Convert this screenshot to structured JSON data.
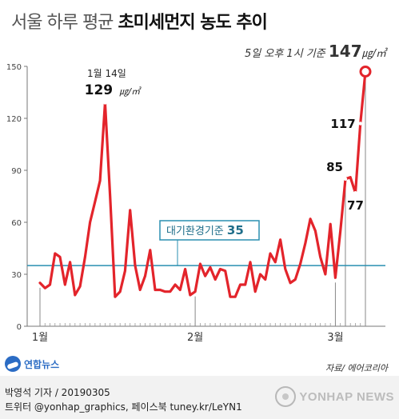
{
  "header": {
    "title_light": "서울 하루 평균",
    "title_bold": "초미세먼지 농도 추이",
    "note_small": "5일 오후 1시 기준",
    "note_value": "147",
    "note_unit": "㎍/㎥"
  },
  "chart_data": {
    "type": "line",
    "x_labels": [
      "1월",
      "2월",
      "3월"
    ],
    "y_ticks": [
      0,
      30,
      60,
      90,
      120,
      150
    ],
    "ylim": [
      0,
      150
    ],
    "series": [
      {
        "color": "#e3242b",
        "values": [
          25,
          22,
          24,
          42,
          40,
          24,
          37,
          18,
          23,
          40,
          60,
          72,
          84,
          129,
          75,
          17,
          20,
          32,
          67,
          35,
          21,
          29,
          44,
          21,
          21,
          20,
          20,
          24,
          21,
          33,
          18,
          20,
          36,
          29,
          34,
          27,
          33,
          32,
          17,
          17,
          24,
          24,
          37,
          20,
          30,
          27,
          42,
          37,
          50,
          33,
          25,
          27,
          36,
          48,
          62,
          55,
          40,
          30,
          59,
          28,
          55,
          85,
          86,
          77,
          117,
          147
        ]
      }
    ],
    "standard_line": {
      "value": 35,
      "label": "대기환경기준",
      "value_label": "35"
    },
    "annotations": [
      {
        "label_top": "1월 14일",
        "value": "129",
        "unit": "㎍/㎥",
        "index": 13
      },
      {
        "value": "85",
        "index": 61
      },
      {
        "value": "77",
        "index": 63
      },
      {
        "value": "117",
        "index": 64
      }
    ],
    "grid": false
  },
  "footer": {
    "logo_text": "연합뉴스",
    "source": "자료/ 에어코리아",
    "credit_line1": "박영석 기자 / 20190305",
    "credit_line2": "트위터 @yonhap_graphics, 페이스북 tuney.kr/LeYN1",
    "watermark": "YONHAP NEWS"
  }
}
